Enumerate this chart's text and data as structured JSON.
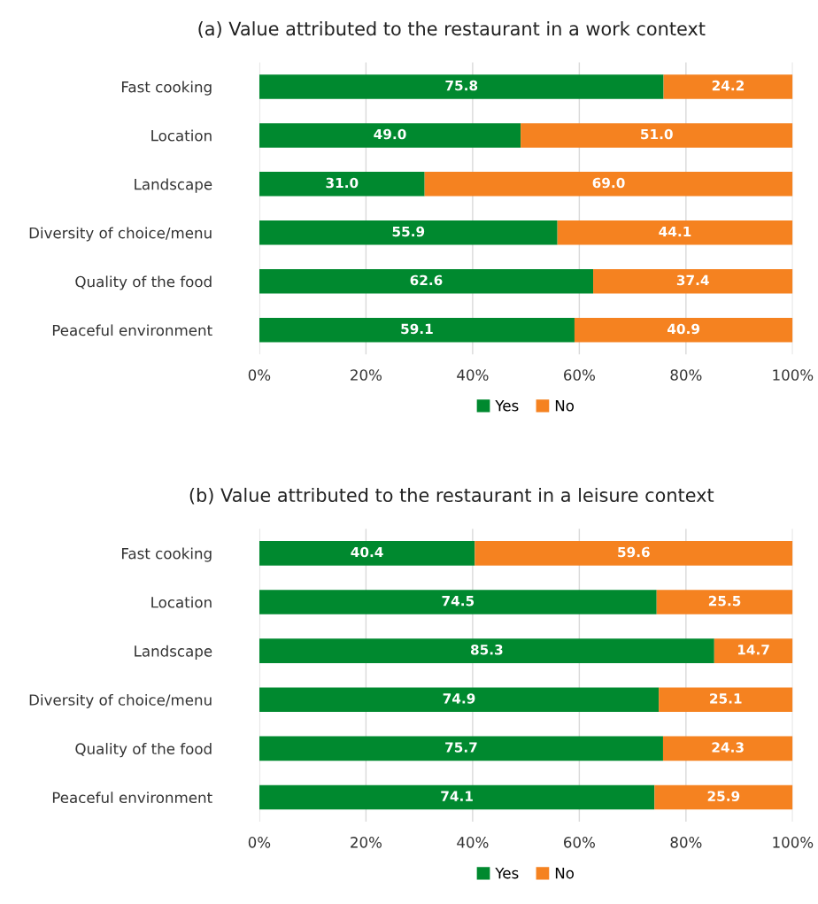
{
  "chart_data": [
    {
      "type": "bar",
      "title": "(a) Value attributed to the restaurant in a work context",
      "orientation": "horizontal",
      "stacked": true,
      "categories": [
        "Fast cooking",
        "Location",
        "Landscape",
        "Diversity of choice/menu",
        "Quality of the food",
        "Peaceful environment"
      ],
      "series": [
        {
          "name": "Yes",
          "color": "#00892f",
          "values": [
            75.8,
            49.0,
            31.0,
            55.9,
            62.6,
            59.1
          ],
          "value_labels": [
            "75.8",
            "49.0",
            "31.0",
            "55.9",
            "62.6",
            "59.1"
          ]
        },
        {
          "name": "No",
          "color": "#f58220",
          "values": [
            24.2,
            51.0,
            69.0,
            44.1,
            37.4,
            40.9
          ],
          "value_labels": [
            "24.2",
            "51.0",
            "69.0",
            "44.1",
            "37.4",
            "40.9"
          ]
        }
      ],
      "xlim": [
        0,
        100
      ],
      "xticks": [
        {
          "value": 0,
          "label": "0%"
        },
        {
          "value": 20,
          "label": "20%"
        },
        {
          "value": 40,
          "label": "40%"
        },
        {
          "value": 60,
          "label": "60%"
        },
        {
          "value": 80,
          "label": "80%"
        },
        {
          "value": 100,
          "label": "100%"
        }
      ],
      "grid": "x",
      "legend": "bottom"
    },
    {
      "type": "bar",
      "title": "(b) Value attributed to the restaurant in a leisure context",
      "orientation": "horizontal",
      "stacked": true,
      "categories": [
        "Fast cooking",
        "Location",
        "Landscape",
        "Diversity of choice/menu",
        "Quality of the food",
        "Peaceful environment"
      ],
      "series": [
        {
          "name": "Yes",
          "color": "#00892f",
          "values": [
            40.4,
            74.5,
            85.3,
            74.9,
            75.7,
            74.1
          ],
          "value_labels": [
            "40.4",
            "74.5",
            "85.3",
            "74.9",
            "75.7",
            "74.1"
          ]
        },
        {
          "name": "No",
          "color": "#f58220",
          "values": [
            59.6,
            25.5,
            14.7,
            25.1,
            24.3,
            25.9
          ],
          "value_labels": [
            "59.6",
            "25.5",
            "14.7",
            "25.1",
            "24.3",
            "25.9"
          ]
        }
      ],
      "xlim": [
        0,
        100
      ],
      "xticks": [
        {
          "value": 0,
          "label": "0%"
        },
        {
          "value": 20,
          "label": "20%"
        },
        {
          "value": 40,
          "label": "40%"
        },
        {
          "value": 60,
          "label": "60%"
        },
        {
          "value": 80,
          "label": "80%"
        },
        {
          "value": 100,
          "label": "100%"
        }
      ],
      "grid": "x",
      "legend": "bottom"
    }
  ]
}
